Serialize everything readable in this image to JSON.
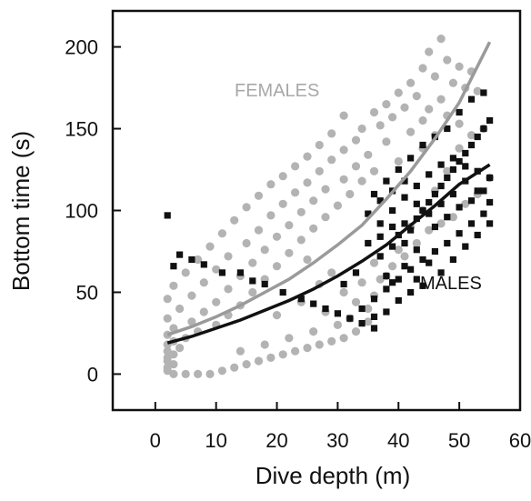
{
  "chart_data": {
    "type": "scatter",
    "title": "",
    "xlabel": "Dive depth (m)",
    "ylabel": "Bottom time (s)",
    "xlim": [
      -7,
      60
    ],
    "ylim": [
      -22,
      222
    ],
    "xticks": [
      "0",
      "10",
      "20",
      "30",
      "40",
      "50",
      "60"
    ],
    "xtick_values": [
      0,
      10,
      20,
      30,
      40,
      50,
      60
    ],
    "yticks": [
      "0",
      "50",
      "100",
      "150",
      "200"
    ],
    "ytick_values": [
      0,
      50,
      100,
      150,
      200
    ],
    "grid": false,
    "legend": "none",
    "colors": {
      "females": "#b3b3b3",
      "males": "#111111",
      "axis": "#111111"
    },
    "series": [
      {
        "name": "FEMALES",
        "marker": "circle",
        "color": "#b3b3b3",
        "fit_curve": [
          [
            2,
            24
          ],
          [
            6,
            29
          ],
          [
            10,
            35
          ],
          [
            14,
            42
          ],
          [
            18,
            50
          ],
          [
            22,
            58
          ],
          [
            26,
            68
          ],
          [
            30,
            79
          ],
          [
            34,
            91
          ],
          [
            38,
            107
          ],
          [
            42,
            124
          ],
          [
            46,
            144
          ],
          [
            50,
            166
          ],
          [
            55,
            203
          ]
        ],
        "points": [
          [
            47,
            205
          ],
          [
            45,
            197
          ],
          [
            48,
            192
          ],
          [
            50,
            188
          ],
          [
            44,
            187
          ],
          [
            52,
            185
          ],
          [
            46,
            182
          ],
          [
            42,
            178
          ],
          [
            49,
            178
          ],
          [
            51,
            175
          ],
          [
            40,
            172
          ],
          [
            53,
            173
          ],
          [
            43,
            170
          ],
          [
            47,
            168
          ],
          [
            38,
            165
          ],
          [
            41,
            163
          ],
          [
            45,
            162
          ],
          [
            36,
            160
          ],
          [
            39,
            157
          ],
          [
            48,
            158
          ],
          [
            31,
            158
          ],
          [
            44,
            155
          ],
          [
            37,
            152
          ],
          [
            50,
            153
          ],
          [
            34,
            150
          ],
          [
            42,
            148
          ],
          [
            29,
            147
          ],
          [
            46,
            146
          ],
          [
            33,
            143
          ],
          [
            38,
            142
          ],
          [
            27,
            140
          ],
          [
            31,
            137
          ],
          [
            44,
            138
          ],
          [
            35,
            134
          ],
          [
            25,
            133
          ],
          [
            29,
            131
          ],
          [
            40,
            130
          ],
          [
            33,
            127
          ],
          [
            23,
            127
          ],
          [
            27,
            124
          ],
          [
            36,
            124
          ],
          [
            21,
            121
          ],
          [
            31,
            119
          ],
          [
            25,
            117
          ],
          [
            34,
            118
          ],
          [
            19,
            116
          ],
          [
            28,
            113
          ],
          [
            23,
            111
          ],
          [
            32,
            110
          ],
          [
            17,
            109
          ],
          [
            26,
            106
          ],
          [
            21,
            104
          ],
          [
            30,
            103
          ],
          [
            15,
            102
          ],
          [
            24,
            99
          ],
          [
            28,
            96
          ],
          [
            19,
            97
          ],
          [
            13,
            94
          ],
          [
            22,
            91
          ],
          [
            26,
            89
          ],
          [
            17,
            88
          ],
          [
            11,
            86
          ],
          [
            20,
            84
          ],
          [
            24,
            82
          ],
          [
            15,
            80
          ],
          [
            9,
            78
          ],
          [
            18,
            76
          ],
          [
            22,
            74
          ],
          [
            12,
            72
          ],
          [
            7,
            70
          ],
          [
            16,
            68
          ],
          [
            20,
            66
          ],
          [
            10,
            64
          ],
          [
            5,
            62
          ],
          [
            14,
            60
          ],
          [
            18,
            58
          ],
          [
            8,
            56
          ],
          [
            3,
            54
          ],
          [
            12,
            52
          ],
          [
            16,
            50
          ],
          [
            6,
            48
          ],
          [
            2,
            46
          ],
          [
            10,
            44
          ],
          [
            14,
            42
          ],
          [
            4,
            40
          ],
          [
            8,
            38
          ],
          [
            12,
            36
          ],
          [
            2,
            34
          ],
          [
            6,
            32
          ],
          [
            10,
            30
          ],
          [
            3,
            28
          ],
          [
            7,
            26
          ],
          [
            2,
            24
          ],
          [
            5,
            22
          ],
          [
            3,
            20
          ],
          [
            2,
            18
          ],
          [
            4,
            16
          ],
          [
            2,
            14
          ],
          [
            3,
            12
          ],
          [
            2,
            10
          ],
          [
            2,
            8
          ],
          [
            3,
            6
          ],
          [
            2,
            4
          ],
          [
            2,
            2
          ],
          [
            25,
            70
          ],
          [
            27,
            55
          ],
          [
            29,
            62
          ],
          [
            31,
            50
          ],
          [
            33,
            44
          ],
          [
            35,
            40
          ],
          [
            30,
            30
          ],
          [
            26,
            26
          ],
          [
            22,
            22
          ],
          [
            18,
            18
          ],
          [
            14,
            14
          ],
          [
            20,
            36
          ],
          [
            24,
            44
          ],
          [
            28,
            38
          ],
          [
            32,
            34
          ],
          [
            34,
            56
          ],
          [
            36,
            68
          ],
          [
            38,
            60
          ],
          [
            40,
            76
          ],
          [
            42,
            90
          ],
          [
            44,
            100
          ],
          [
            46,
            112
          ],
          [
            48,
            124
          ],
          [
            50,
            138
          ],
          [
            52,
            146
          ],
          [
            54,
            150
          ],
          [
            55,
            120
          ],
          [
            53,
            110
          ],
          [
            51,
            104
          ],
          [
            49,
            96
          ],
          [
            47,
            92
          ],
          [
            45,
            88
          ],
          [
            43,
            80
          ],
          [
            41,
            72
          ],
          [
            39,
            66
          ],
          [
            37,
            58
          ],
          [
            36,
            48
          ],
          [
            35,
            32
          ],
          [
            33,
            26
          ],
          [
            31,
            22
          ],
          [
            29,
            20
          ],
          [
            27,
            18
          ],
          [
            25,
            16
          ],
          [
            23,
            14
          ],
          [
            21,
            12
          ],
          [
            19,
            10
          ],
          [
            17,
            8
          ],
          [
            15,
            6
          ],
          [
            13,
            4
          ],
          [
            11,
            2
          ],
          [
            9,
            0
          ],
          [
            7,
            0
          ],
          [
            5,
            0
          ],
          [
            3,
            0
          ]
        ]
      },
      {
        "name": "MALES",
        "marker": "square",
        "color": "#111111",
        "fit_curve": [
          [
            2,
            19
          ],
          [
            6,
            23
          ],
          [
            10,
            28
          ],
          [
            14,
            33
          ],
          [
            18,
            39
          ],
          [
            22,
            45
          ],
          [
            26,
            52
          ],
          [
            30,
            60
          ],
          [
            34,
            69
          ],
          [
            38,
            79
          ],
          [
            42,
            91
          ],
          [
            46,
            103
          ],
          [
            50,
            116
          ],
          [
            55,
            128
          ]
        ],
        "points": [
          [
            2,
            97
          ],
          [
            4,
            73
          ],
          [
            3,
            66
          ],
          [
            6,
            70
          ],
          [
            8,
            67
          ],
          [
            11,
            62
          ],
          [
            14,
            62
          ],
          [
            16,
            57
          ],
          [
            18,
            55
          ],
          [
            21,
            50
          ],
          [
            24,
            46
          ],
          [
            26,
            43
          ],
          [
            28,
            40
          ],
          [
            30,
            37
          ],
          [
            32,
            34
          ],
          [
            34,
            31
          ],
          [
            36,
            28
          ],
          [
            38,
            60
          ],
          [
            37,
            72
          ],
          [
            39,
            78
          ],
          [
            40,
            85
          ],
          [
            41,
            92
          ],
          [
            42,
            88
          ],
          [
            43,
            95
          ],
          [
            44,
            100
          ],
          [
            45,
            105
          ],
          [
            46,
            110
          ],
          [
            47,
            115
          ],
          [
            48,
            120
          ],
          [
            49,
            125
          ],
          [
            50,
            130
          ],
          [
            51,
            135
          ],
          [
            52,
            140
          ],
          [
            53,
            145
          ],
          [
            54,
            150
          ],
          [
            55,
            155
          ],
          [
            52,
            168
          ],
          [
            54,
            172
          ],
          [
            50,
            160
          ],
          [
            48,
            150
          ],
          [
            46,
            145
          ],
          [
            44,
            140
          ],
          [
            42,
            132
          ],
          [
            40,
            125
          ],
          [
            38,
            118
          ],
          [
            36,
            110
          ],
          [
            35,
            98
          ],
          [
            37,
            92
          ],
          [
            39,
            100
          ],
          [
            41,
            108
          ],
          [
            43,
            115
          ],
          [
            45,
            122
          ],
          [
            47,
            128
          ],
          [
            49,
            132
          ],
          [
            51,
            118
          ],
          [
            53,
            112
          ],
          [
            55,
            105
          ],
          [
            54,
            98
          ],
          [
            52,
            92
          ],
          [
            50,
            86
          ],
          [
            48,
            80
          ],
          [
            46,
            75
          ],
          [
            44,
            70
          ],
          [
            42,
            64
          ],
          [
            40,
            58
          ],
          [
            38,
            52
          ],
          [
            36,
            46
          ],
          [
            34,
            40
          ],
          [
            37,
            84
          ],
          [
            39,
            90
          ],
          [
            41,
            80
          ],
          [
            43,
            76
          ],
          [
            45,
            68
          ],
          [
            47,
            62
          ],
          [
            49,
            70
          ],
          [
            51,
            78
          ],
          [
            53,
            85
          ],
          [
            55,
            92
          ],
          [
            42,
            50
          ],
          [
            40,
            45
          ],
          [
            38,
            38
          ],
          [
            36,
            35
          ],
          [
            39,
            56
          ],
          [
            41,
            66
          ],
          [
            43,
            58
          ],
          [
            44,
            54
          ],
          [
            46,
            90
          ],
          [
            48,
            96
          ],
          [
            50,
            102
          ],
          [
            52,
            106
          ],
          [
            54,
            112
          ],
          [
            55,
            120
          ],
          [
            53,
            124
          ],
          [
            51,
            127
          ],
          [
            49,
            110
          ],
          [
            47,
            104
          ],
          [
            45,
            98
          ],
          [
            43,
            104
          ],
          [
            41,
            118
          ],
          [
            39,
            112
          ],
          [
            37,
            106
          ],
          [
            35,
            80
          ],
          [
            33,
            62
          ],
          [
            31,
            55
          ]
        ]
      }
    ]
  },
  "annotations": {
    "females": "FEMALES",
    "males": "MALES"
  }
}
